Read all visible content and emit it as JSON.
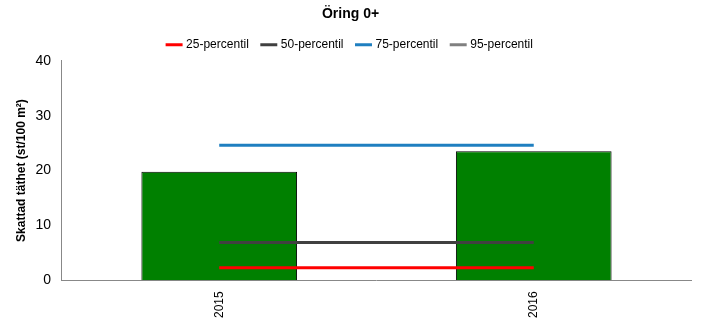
{
  "chart_data": {
    "type": "bar",
    "title": "Öring 0+",
    "y_label": "Skattad täthet (st/100 m²)",
    "categories": [
      "2015",
      "2016"
    ],
    "values": [
      19.8,
      23.5
    ],
    "color": "#008000",
    "series": [
      {
        "name": "25-percentil",
        "color": "#ff0000",
        "type": "line",
        "values": [
          2.3,
          2.3
        ]
      },
      {
        "name": "50-percentil",
        "color": "#404040",
        "type": "line",
        "values": [
          6.9,
          6.9
        ]
      },
      {
        "name": "75-percentil",
        "color": "#1f7fc0",
        "type": "line",
        "values": [
          24.6,
          24.6
        ]
      },
      {
        "name": "95-percentil",
        "color": "#808080",
        "type": "line",
        "values": [
          null,
          null
        ]
      }
    ],
    "ylim": [
      0,
      40
    ],
    "yticks": [
      0,
      10,
      20,
      30,
      40
    ],
    "grid": false,
    "legend": "top"
  }
}
